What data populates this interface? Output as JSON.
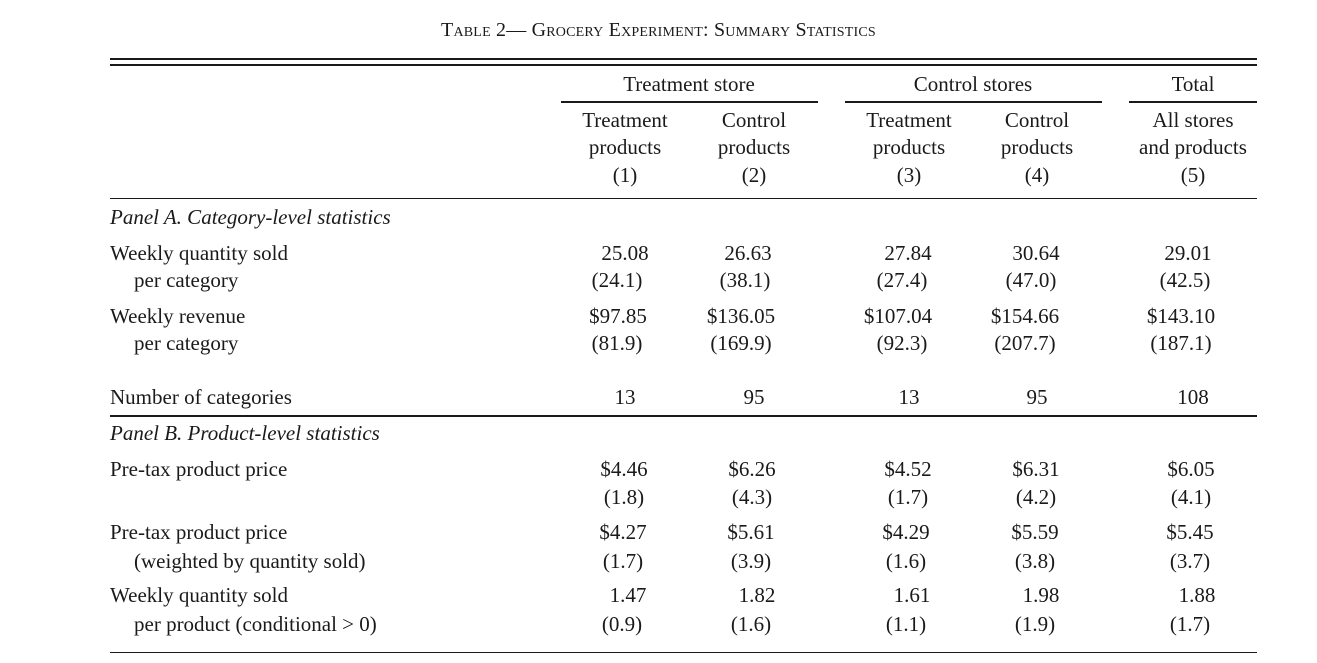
{
  "caption": "Table 2— Grocery Experiment: Summary Statistics",
  "groups": {
    "treatment_store": "Treatment store",
    "control_stores": "Control stores",
    "total": "Total"
  },
  "columns": [
    {
      "line1": "Treatment",
      "line2": "products",
      "num": "(1)"
    },
    {
      "line1": "Control",
      "line2": "products",
      "num": "(2)"
    },
    {
      "line1": "Treatment",
      "line2": "products",
      "num": "(3)"
    },
    {
      "line1": "Control",
      "line2": "products",
      "num": "(4)"
    },
    {
      "line1": "All stores",
      "line2": "and products",
      "num": "(5)"
    }
  ],
  "panel_a": {
    "title": "Panel A. Category-level statistics",
    "rows": [
      {
        "label1": "Weekly quantity sold",
        "label2": "per category",
        "values": [
          "25.08",
          "26.63",
          "27.84",
          "30.64",
          "29.01"
        ],
        "se": [
          "(24.1)",
          "(38.1)",
          "(27.4)",
          "(47.0)",
          "(42.5)"
        ]
      },
      {
        "label1": "Weekly revenue",
        "label2": "per category",
        "values": [
          "$97.85",
          "$136.05",
          "$107.04",
          "$154.66",
          "$143.10"
        ],
        "se": [
          "(81.9)",
          "(169.9)",
          "(92.3)",
          "(207.7)",
          "(187.1)"
        ]
      },
      {
        "label1": "Number of categories",
        "values": [
          "13",
          "95",
          "13",
          "95",
          "108"
        ]
      }
    ]
  },
  "panel_b": {
    "title": "Panel B. Product-level statistics",
    "rows": [
      {
        "label1": "Pre-tax product price",
        "label2": "",
        "values": [
          "$4.46",
          "$6.26",
          "$4.52",
          "$6.31",
          "$6.05"
        ],
        "se": [
          "(1.8)",
          "(4.3)",
          "(1.7)",
          "(4.2)",
          "(4.1)"
        ]
      },
      {
        "label1": "Pre-tax product price",
        "label2": "(weighted by quantity sold)",
        "values": [
          "$4.27",
          "$5.61",
          "$4.29",
          "$5.59",
          "$5.45"
        ],
        "se": [
          "(1.7)",
          "(3.9)",
          "(1.6)",
          "(3.8)",
          "(3.7)"
        ]
      },
      {
        "label1": "Weekly quantity sold",
        "label2": "per product (conditional > 0)",
        "values": [
          "1.47",
          "1.82",
          "1.61",
          "1.98",
          "1.88"
        ],
        "se": [
          "(0.9)",
          "(1.6)",
          "(1.1)",
          "(1.9)",
          "(1.7)"
        ]
      }
    ]
  }
}
